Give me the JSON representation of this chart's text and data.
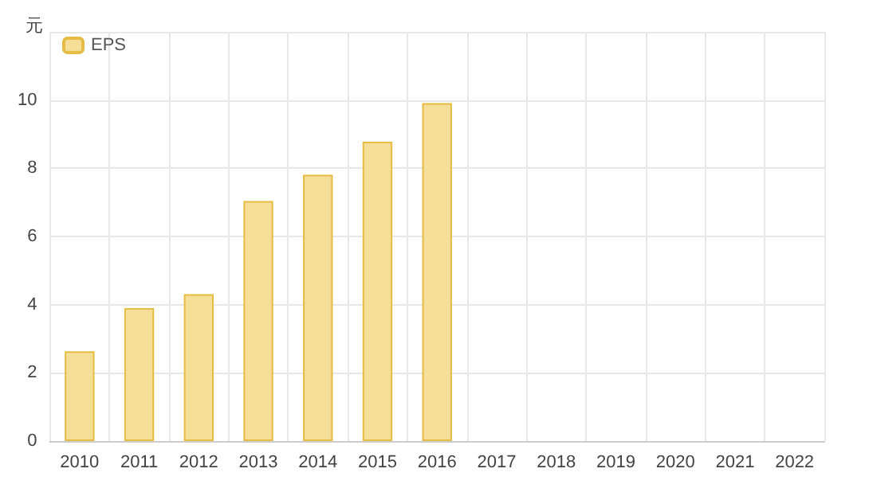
{
  "chart_data": {
    "type": "bar",
    "ylabel": "元",
    "categories": [
      "2010",
      "2011",
      "2012",
      "2013",
      "2014",
      "2015",
      "2016",
      "2017",
      "2018",
      "2019",
      "2020",
      "2021",
      "2022"
    ],
    "series": [
      {
        "name": "EPS",
        "color": "#f5de98",
        "values": [
          2.63,
          3.9,
          4.31,
          7.04,
          7.81,
          8.78,
          9.91,
          null,
          null,
          null,
          null,
          null,
          null
        ]
      }
    ],
    "ylim": [
      0,
      12
    ],
    "yticks": [
      0,
      2,
      4,
      6,
      8,
      10,
      {
        "value": 12,
        "label": null
      }
    ],
    "grid": true,
    "legend": "top left"
  }
}
